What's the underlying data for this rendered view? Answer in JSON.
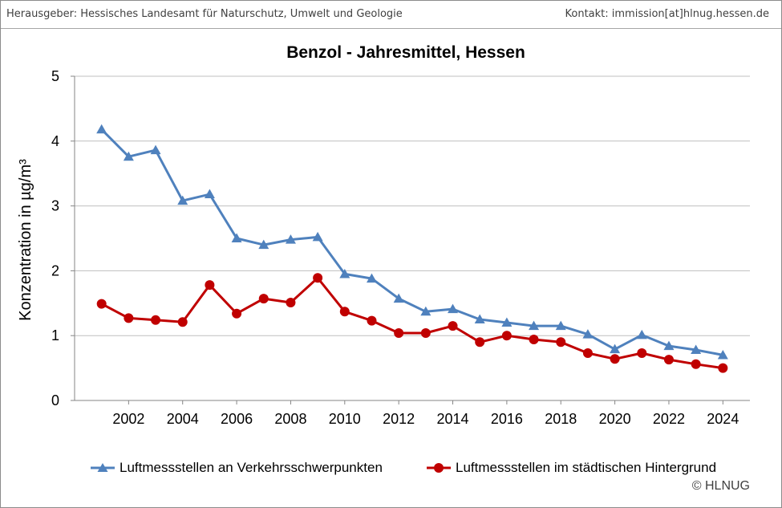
{
  "header": {
    "publisher": "Herausgeber: Hessisches Landesamt für Naturschutz, Umwelt und Geologie",
    "contact": "Kontakt: immission[at]hlnug.hessen.de"
  },
  "copyright": "© HLNUG",
  "colors": {
    "gridline": "#bfbfbf",
    "axis": "#868686",
    "header_text": "#404040"
  },
  "chart_data": {
    "type": "line",
    "title": "Benzol - Jahresmittel, Hessen",
    "xlabel": "",
    "ylabel": "Konzentration in µg/m³",
    "xlim": [
      2000,
      2025
    ],
    "ylim": [
      0,
      5
    ],
    "xticks": [
      2002,
      2004,
      2006,
      2008,
      2010,
      2012,
      2014,
      2016,
      2018,
      2020,
      2022,
      2024
    ],
    "yticks": [
      0,
      1,
      2,
      3,
      4,
      5
    ],
    "grid": true,
    "legend_position": "bottom",
    "x": [
      2001,
      2002,
      2003,
      2004,
      2005,
      2006,
      2007,
      2008,
      2009,
      2010,
      2011,
      2012,
      2013,
      2014,
      2015,
      2016,
      2017,
      2018,
      2019,
      2020,
      2021,
      2022,
      2023,
      2024
    ],
    "series": [
      {
        "name": "Luftmessstellen an Verkehrsschwerpunkten",
        "color": "#4f81bd",
        "marker": "triangle",
        "values": [
          4.18,
          3.76,
          3.86,
          3.08,
          3.18,
          2.5,
          2.4,
          2.48,
          2.52,
          1.95,
          1.88,
          1.57,
          1.37,
          1.41,
          1.25,
          1.2,
          1.15,
          1.15,
          1.02,
          0.79,
          1.01,
          0.84,
          0.78,
          0.7
        ]
      },
      {
        "name": "Luftmessstellen im städtischen Hintergrund",
        "color": "#c00000",
        "marker": "circle",
        "values": [
          1.49,
          1.27,
          1.24,
          1.21,
          1.78,
          1.34,
          1.57,
          1.51,
          1.89,
          1.37,
          1.23,
          1.04,
          1.04,
          1.15,
          0.9,
          1.0,
          0.94,
          0.9,
          0.73,
          0.64,
          0.73,
          0.63,
          0.56,
          0.5
        ]
      }
    ]
  }
}
